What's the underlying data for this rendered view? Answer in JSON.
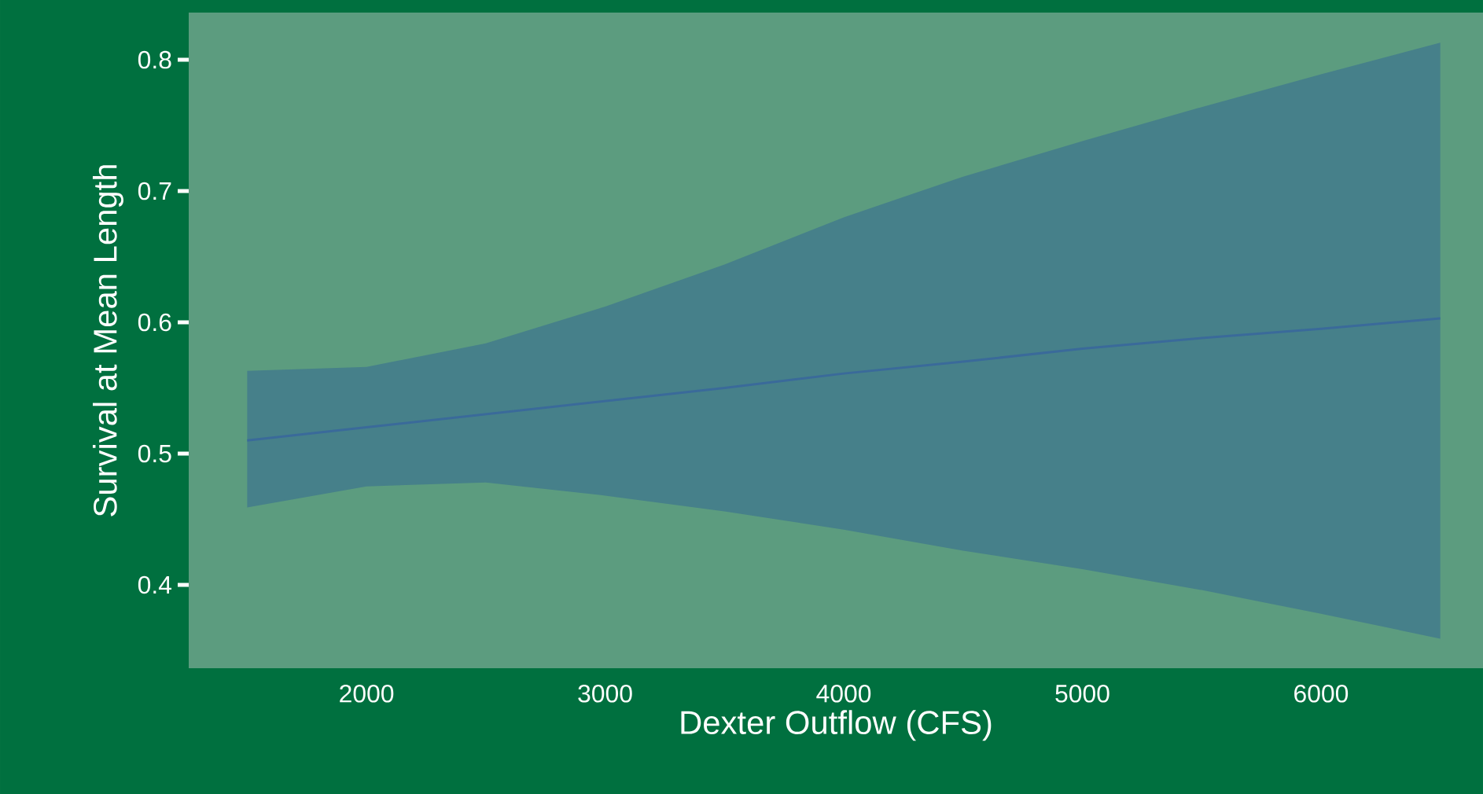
{
  "chart_data": {
    "type": "line",
    "xlabel": "Dexter Outflow (CFS)",
    "ylabel": "Survival at Mean Length",
    "x": [
      1500,
      2000,
      2500,
      3000,
      3500,
      4000,
      4500,
      5000,
      5500,
      6000,
      6500
    ],
    "series": [
      {
        "color": "#3a6a9a",
        "values": [
          0.51,
          0.52,
          0.53,
          0.54,
          0.55,
          0.561,
          0.57,
          0.58,
          0.588,
          0.595,
          0.603
        ],
        "lower": [
          0.459,
          0.475,
          0.478,
          0.468,
          0.456,
          0.442,
          0.426,
          0.412,
          0.396,
          0.378,
          0.359
        ],
        "upper": [
          0.563,
          0.566,
          0.584,
          0.612,
          0.644,
          0.68,
          0.711,
          0.738,
          0.764,
          0.789,
          0.813
        ]
      }
    ],
    "xlim": [
      1255,
      6679
    ],
    "ylim": [
      0.3365,
      0.836
    ],
    "xticks": [
      2000,
      3000,
      4000,
      5000,
      6000
    ],
    "yticks": [
      {
        "value": 0.4,
        "label": "0.4"
      },
      {
        "value": 0.5,
        "label": "0.5"
      },
      {
        "value": 0.6,
        "label": "0.6"
      },
      {
        "value": 0.7,
        "label": "0.7"
      },
      {
        "value": 0.8,
        "label": "0.8"
      }
    ],
    "grid": false,
    "marker": "none",
    "line_style": "solid"
  }
}
